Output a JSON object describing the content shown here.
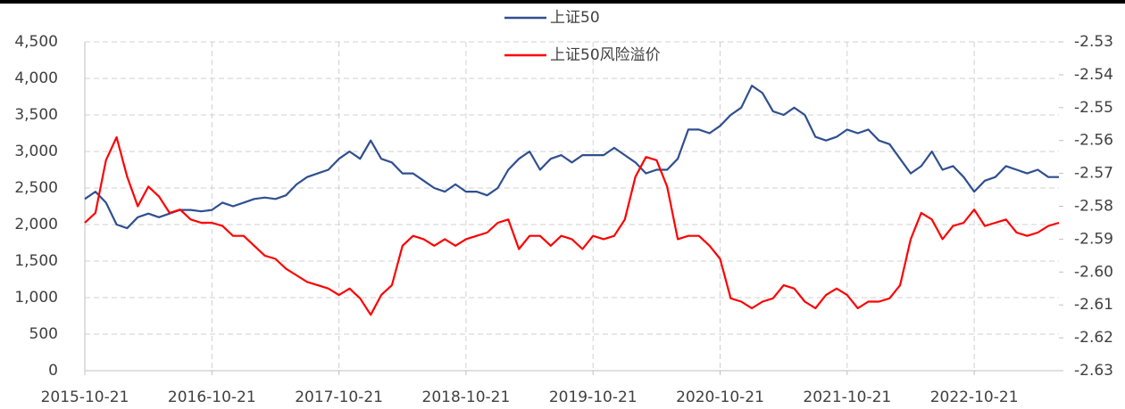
{
  "chart_data": {
    "type": "line",
    "categories": [
      "2015-10-21",
      null,
      null,
      null,
      null,
      null,
      null,
      null,
      null,
      null,
      null,
      null,
      "2016-10-21",
      null,
      null,
      null,
      null,
      null,
      null,
      null,
      null,
      null,
      null,
      null,
      "2017-10-21",
      null,
      null,
      null,
      null,
      null,
      null,
      null,
      null,
      null,
      null,
      null,
      "2018-10-21",
      null,
      null,
      null,
      null,
      null,
      null,
      null,
      null,
      null,
      null,
      null,
      "2019-10-21",
      null,
      null,
      null,
      null,
      null,
      null,
      null,
      null,
      null,
      null,
      null,
      "2020-10-21",
      null,
      null,
      null,
      null,
      null,
      null,
      null,
      null,
      null,
      null,
      null,
      "2021-10-21",
      null,
      null,
      null,
      null,
      null,
      null,
      null,
      null,
      null,
      null,
      null,
      "2022-10-21",
      null,
      null,
      null,
      null,
      null,
      null,
      null,
      null
    ],
    "series": [
      {
        "name": "上证50",
        "color": "#2f4f8f",
        "values": [
          2350,
          2450,
          2300,
          2000,
          1950,
          2100,
          2150,
          2100,
          2150,
          2200,
          2200,
          2180,
          2200,
          2300,
          2250,
          2300,
          2350,
          2370,
          2350,
          2400,
          2550,
          2650,
          2700,
          2750,
          2900,
          3000,
          2900,
          3150,
          2900,
          2850,
          2700,
          2700,
          2600,
          2500,
          2450,
          2550,
          2450,
          2450,
          2400,
          2500,
          2750,
          2900,
          3000,
          2750,
          2900,
          2950,
          2850,
          2950,
          2950,
          2950,
          3050,
          2950,
          2850,
          2700,
          2750,
          2750,
          2900,
          3300,
          3300,
          3250,
          3350,
          3500,
          3600,
          3900,
          3800,
          3550,
          3500,
          3600,
          3500,
          3200,
          3150,
          3200,
          3300,
          3250,
          3300,
          3150,
          3100,
          2900,
          2700,
          2800,
          3000,
          2750,
          2800,
          2650,
          2450,
          2600,
          2650,
          2800,
          2750,
          2700,
          2750,
          2650,
          2650
        ]
      },
      {
        "name": "上证50风险溢价",
        "color": "#ff0000",
        "axis": "y2",
        "values": [
          -2.585,
          -2.582,
          -2.566,
          -2.559,
          -2.571,
          -2.58,
          -2.574,
          -2.577,
          -2.582,
          -2.581,
          -2.584,
          -2.585,
          -2.585,
          -2.586,
          -2.589,
          -2.589,
          -2.592,
          -2.595,
          -2.596,
          -2.599,
          -2.601,
          -2.603,
          -2.604,
          -2.605,
          -2.607,
          -2.605,
          -2.608,
          -2.613,
          -2.607,
          -2.604,
          -2.592,
          -2.589,
          -2.59,
          -2.592,
          -2.59,
          -2.592,
          -2.59,
          -2.589,
          -2.588,
          -2.585,
          -2.584,
          -2.593,
          -2.589,
          -2.589,
          -2.592,
          -2.589,
          -2.59,
          -2.593,
          -2.589,
          -2.59,
          -2.589,
          -2.584,
          -2.571,
          -2.565,
          -2.566,
          -2.574,
          -2.59,
          -2.589,
          -2.589,
          -2.592,
          -2.596,
          -2.608,
          -2.609,
          -2.611,
          -2.609,
          -2.608,
          -2.604,
          -2.605,
          -2.609,
          -2.611,
          -2.607,
          -2.605,
          -2.607,
          -2.611,
          -2.609,
          -2.609,
          -2.608,
          -2.604,
          -2.59,
          -2.582,
          -2.584,
          -2.59,
          -2.586,
          -2.585,
          -2.581,
          -2.586,
          -2.585,
          -2.584,
          -2.588,
          -2.589,
          -2.588,
          -2.586,
          -2.585
        ]
      }
    ],
    "ylim": [
      0,
      4500
    ],
    "yticks": [
      0,
      500,
      {
        "value": 1000,
        "label": "1,000"
      },
      {
        "value": 1500,
        "label": "1,500"
      },
      {
        "value": 2000,
        "label": "2,000"
      },
      {
        "value": 2500,
        "label": "2,500"
      },
      {
        "value": 3000,
        "label": "3,000"
      },
      {
        "value": 3500,
        "label": "3,500"
      },
      {
        "value": 4000,
        "label": "4,000"
      },
      {
        "value": 4500,
        "label": "4,500"
      }
    ],
    "y2lim": [
      -2.63,
      -2.53
    ],
    "y2ticks": [
      -2.63,
      -2.62,
      -2.61,
      -2.6,
      -2.59,
      -2.58,
      -2.57,
      -2.56,
      -2.55,
      -2.54,
      -2.53
    ],
    "y2tick_labels": [
      "-2.63",
      "-2.62",
      "-2.61",
      "-2.60",
      "-2.59",
      "-2.58",
      "-2.57",
      "-2.56",
      "-2.55",
      "-2.54",
      "-2.53"
    ],
    "grid": true,
    "legend": "top"
  }
}
